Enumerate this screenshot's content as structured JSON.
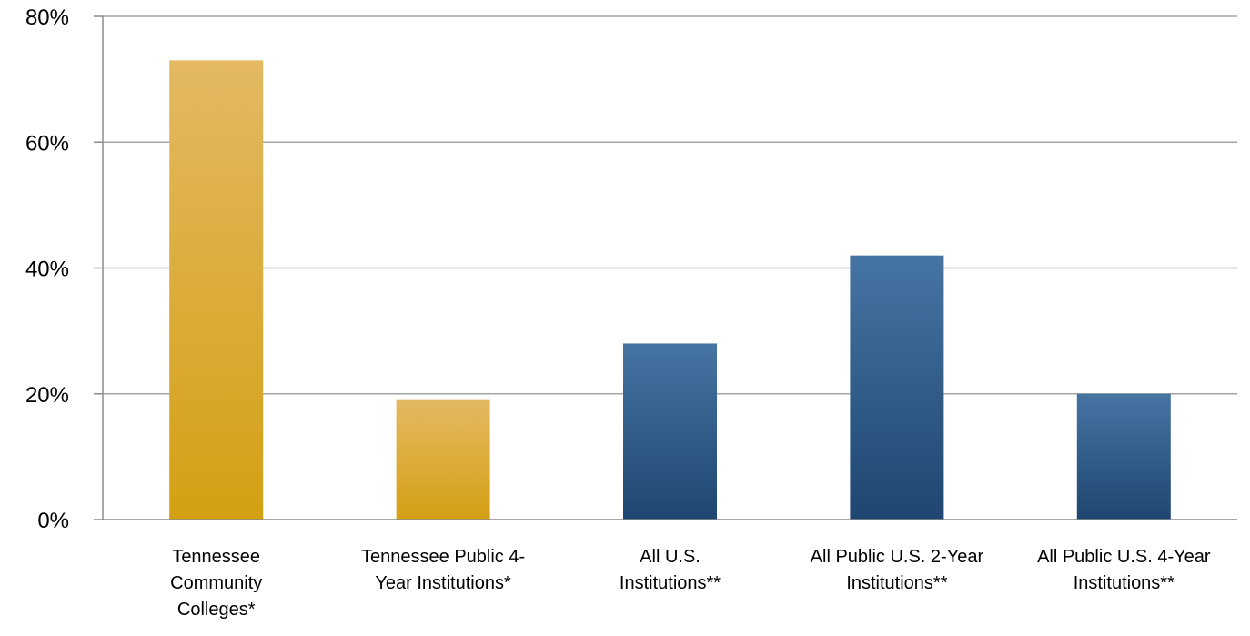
{
  "chart_data": {
    "type": "bar",
    "title": "",
    "xlabel": "",
    "ylabel": "",
    "ylim": [
      0,
      80
    ],
    "yticks": [
      "0%",
      "20%",
      "40%",
      "60%",
      "80%"
    ],
    "ytick_values": [
      0,
      20,
      40,
      60,
      80
    ],
    "grid": true,
    "legend": "none",
    "categories": [
      [
        "Tennessee",
        "Community",
        "Colleges*"
      ],
      [
        "Tennessee Public 4-",
        "Year Institutions*"
      ],
      [
        "All U.S.",
        "Institutions**"
      ],
      [
        "All Public U.S. 2-Year",
        "Institutions**"
      ],
      [
        "All Public U.S. 4-Year",
        "Institutions**"
      ]
    ],
    "values": [
      73,
      19,
      28,
      42,
      20
    ],
    "bar_colors": [
      "gold",
      "gold",
      "blue",
      "blue",
      "blue"
    ],
    "colors": {
      "gold_top": "#e3b962",
      "gold_bottom": "#d4a013",
      "blue_top": "#4674a3",
      "blue_bottom": "#1e4670",
      "grid": "#a6a6a6",
      "axis": "#8c8c8c"
    }
  }
}
